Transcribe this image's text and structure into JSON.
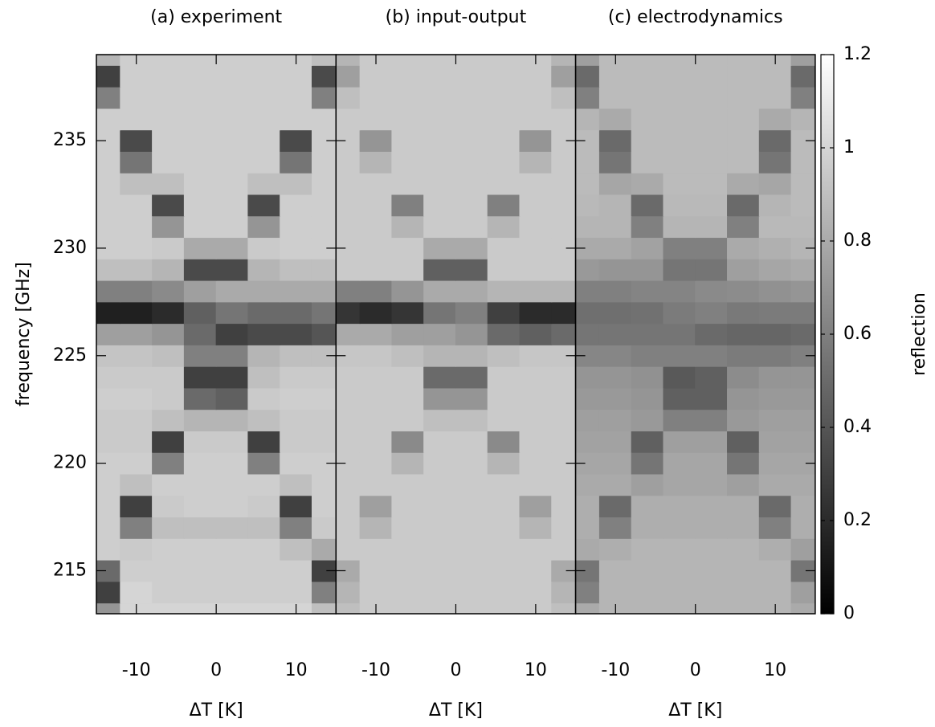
{
  "chart_data": [
    {
      "type": "heatmap",
      "title": "(a) experiment",
      "xlabel": "ΔT [K]",
      "ylabel": "frequency [GHz]",
      "x": [
        -14,
        -10,
        -6,
        -2,
        2,
        6,
        10,
        14
      ],
      "y": [
        213,
        214,
        215,
        216,
        217,
        218,
        219,
        220,
        221,
        222,
        223,
        224,
        225,
        226,
        227,
        228,
        229,
        230,
        231,
        232,
        233,
        234,
        235,
        236,
        237,
        238,
        239
      ],
      "z": [
        [
          0.7,
          1,
          1,
          1,
          1,
          1,
          1,
          0.9
        ],
        [
          0.3,
          1,
          0.97,
          0.97,
          0.97,
          0.97,
          0.97,
          0.6
        ],
        [
          0.5,
          0.97,
          0.97,
          0.97,
          0.97,
          0.97,
          0.97,
          0.3
        ],
        [
          0.97,
          0.95,
          0.97,
          0.97,
          0.97,
          0.97,
          0.9,
          0.8
        ],
        [
          0.97,
          0.6,
          0.9,
          0.9,
          0.9,
          0.9,
          0.6,
          0.95
        ],
        [
          0.97,
          0.3,
          0.95,
          0.97,
          0.97,
          0.95,
          0.3,
          0.97
        ],
        [
          0.97,
          0.9,
          0.97,
          0.97,
          0.97,
          0.97,
          0.9,
          0.97
        ],
        [
          0.97,
          0.97,
          0.6,
          0.97,
          0.97,
          0.6,
          0.97,
          0.97
        ],
        [
          0.95,
          0.95,
          0.3,
          0.95,
          0.95,
          0.3,
          0.95,
          0.95
        ],
        [
          0.95,
          0.95,
          0.9,
          0.85,
          0.85,
          0.9,
          0.95,
          0.95
        ],
        [
          0.97,
          0.97,
          0.95,
          0.5,
          0.45,
          0.95,
          0.97,
          0.97
        ],
        [
          0.95,
          0.95,
          0.95,
          0.3,
          0.3,
          0.9,
          0.95,
          0.95
        ],
        [
          0.92,
          0.92,
          0.9,
          0.6,
          0.6,
          0.85,
          0.9,
          0.9
        ],
        [
          0.75,
          0.75,
          0.7,
          0.5,
          0.3,
          0.35,
          0.35,
          0.4
        ],
        [
          0.15,
          0.15,
          0.2,
          0.45,
          0.55,
          0.5,
          0.5,
          0.55
        ],
        [
          0.6,
          0.6,
          0.65,
          0.75,
          0.8,
          0.8,
          0.8,
          0.8
        ],
        [
          0.9,
          0.9,
          0.85,
          0.35,
          0.35,
          0.85,
          0.9,
          0.9
        ],
        [
          0.97,
          0.97,
          0.95,
          0.8,
          0.8,
          0.95,
          0.97,
          0.97
        ],
        [
          0.97,
          0.97,
          0.7,
          0.97,
          0.97,
          0.7,
          0.97,
          0.97
        ],
        [
          0.97,
          0.97,
          0.35,
          0.97,
          0.97,
          0.35,
          0.97,
          0.97
        ],
        [
          0.97,
          0.9,
          0.9,
          0.97,
          0.97,
          0.9,
          0.9,
          0.97
        ],
        [
          0.97,
          0.55,
          0.97,
          0.97,
          0.97,
          0.97,
          0.55,
          0.97
        ],
        [
          0.97,
          0.35,
          0.97,
          0.97,
          0.97,
          0.97,
          0.35,
          0.97
        ],
        [
          0.97,
          0.97,
          0.97,
          0.97,
          0.97,
          0.97,
          0.97,
          0.97
        ],
        [
          0.6,
          0.97,
          0.97,
          0.97,
          0.97,
          0.97,
          0.97,
          0.6
        ],
        [
          0.3,
          0.97,
          0.97,
          0.97,
          0.97,
          0.97,
          0.97,
          0.35
        ],
        [
          0.85,
          0.97,
          0.97,
          0.97,
          0.97,
          0.97,
          0.97,
          0.9
        ]
      ],
      "xlim": [
        -15,
        15
      ],
      "ylim": [
        213,
        239
      ],
      "xticks": [
        -10,
        0,
        10
      ],
      "yticks": [
        215,
        220,
        225,
        230,
        235
      ]
    },
    {
      "type": "heatmap",
      "title": "(b) input-output",
      "xlabel": "ΔT [K]",
      "x": [
        -14,
        -10,
        -6,
        -2,
        2,
        6,
        10,
        14
      ],
      "y": [
        213,
        214,
        215,
        216,
        217,
        218,
        219,
        220,
        221,
        222,
        223,
        224,
        225,
        226,
        227,
        228,
        229,
        230,
        231,
        232,
        233,
        234,
        235,
        236,
        237,
        238,
        239
      ],
      "z": [
        [
          0.9,
          0.95,
          0.95,
          0.95,
          0.95,
          0.95,
          0.95,
          0.9
        ],
        [
          0.85,
          0.95,
          0.95,
          0.95,
          0.95,
          0.95,
          0.95,
          0.85
        ],
        [
          0.8,
          0.95,
          0.95,
          0.95,
          0.95,
          0.95,
          0.95,
          0.8
        ],
        [
          0.95,
          0.95,
          0.95,
          0.95,
          0.95,
          0.95,
          0.95,
          0.95
        ],
        [
          0.95,
          0.85,
          0.95,
          0.95,
          0.95,
          0.95,
          0.85,
          0.95
        ],
        [
          0.95,
          0.75,
          0.95,
          0.95,
          0.95,
          0.95,
          0.75,
          0.95
        ],
        [
          0.95,
          0.95,
          0.95,
          0.95,
          0.95,
          0.95,
          0.95,
          0.95
        ],
        [
          0.95,
          0.95,
          0.85,
          0.95,
          0.95,
          0.85,
          0.95,
          0.95
        ],
        [
          0.95,
          0.95,
          0.65,
          0.95,
          0.95,
          0.65,
          0.95,
          0.95
        ],
        [
          0.95,
          0.95,
          0.95,
          0.9,
          0.9,
          0.95,
          0.95,
          0.95
        ],
        [
          0.95,
          0.95,
          0.95,
          0.7,
          0.7,
          0.95,
          0.95,
          0.95
        ],
        [
          0.95,
          0.95,
          0.95,
          0.5,
          0.5,
          0.95,
          0.95,
          0.95
        ],
        [
          0.93,
          0.93,
          0.9,
          0.85,
          0.85,
          0.9,
          0.93,
          0.93
        ],
        [
          0.8,
          0.8,
          0.75,
          0.75,
          0.7,
          0.5,
          0.45,
          0.5
        ],
        [
          0.25,
          0.2,
          0.25,
          0.55,
          0.6,
          0.3,
          0.2,
          0.2
        ],
        [
          0.6,
          0.6,
          0.7,
          0.8,
          0.8,
          0.85,
          0.85,
          0.85
        ],
        [
          0.95,
          0.95,
          0.95,
          0.45,
          0.45,
          0.95,
          0.95,
          0.95
        ],
        [
          0.95,
          0.95,
          0.95,
          0.8,
          0.8,
          0.95,
          0.95,
          0.95
        ],
        [
          0.95,
          0.95,
          0.85,
          0.95,
          0.95,
          0.85,
          0.95,
          0.95
        ],
        [
          0.95,
          0.95,
          0.6,
          0.95,
          0.95,
          0.6,
          0.95,
          0.95
        ],
        [
          0.95,
          0.95,
          0.95,
          0.95,
          0.95,
          0.95,
          0.95,
          0.95
        ],
        [
          0.95,
          0.85,
          0.95,
          0.95,
          0.95,
          0.95,
          0.85,
          0.95
        ],
        [
          0.95,
          0.7,
          0.95,
          0.95,
          0.95,
          0.95,
          0.7,
          0.95
        ],
        [
          0.95,
          0.95,
          0.95,
          0.95,
          0.95,
          0.95,
          0.95,
          0.95
        ],
        [
          0.9,
          0.95,
          0.95,
          0.95,
          0.95,
          0.95,
          0.95,
          0.9
        ],
        [
          0.75,
          0.95,
          0.95,
          0.95,
          0.95,
          0.95,
          0.95,
          0.75
        ],
        [
          0.85,
          0.95,
          0.95,
          0.95,
          0.95,
          0.95,
          0.95,
          0.85
        ]
      ],
      "xlim": [
        -15,
        15
      ],
      "ylim": [
        213,
        239
      ],
      "xticks": [
        -10,
        0,
        10
      ],
      "yticks": [
        215,
        220,
        225,
        230,
        235
      ]
    },
    {
      "type": "heatmap",
      "title": "(c) electrodynamics",
      "xlabel": "ΔT [K]",
      "x": [
        -14,
        -10,
        -6,
        -2,
        2,
        6,
        10,
        14
      ],
      "y": [
        213,
        214,
        215,
        216,
        217,
        218,
        219,
        220,
        221,
        222,
        223,
        224,
        225,
        226,
        227,
        228,
        229,
        230,
        231,
        232,
        233,
        234,
        235,
        236,
        237,
        238,
        239
      ],
      "z": [
        [
          0.8,
          0.85,
          0.85,
          0.85,
          0.85,
          0.85,
          0.85,
          0.8
        ],
        [
          0.6,
          0.85,
          0.85,
          0.85,
          0.85,
          0.85,
          0.85,
          0.75
        ],
        [
          0.55,
          0.85,
          0.85,
          0.85,
          0.85,
          0.85,
          0.85,
          0.55
        ],
        [
          0.8,
          0.82,
          0.85,
          0.85,
          0.85,
          0.85,
          0.82,
          0.75
        ],
        [
          0.82,
          0.6,
          0.82,
          0.82,
          0.82,
          0.82,
          0.6,
          0.82
        ],
        [
          0.82,
          0.5,
          0.82,
          0.82,
          0.82,
          0.82,
          0.5,
          0.82
        ],
        [
          0.8,
          0.8,
          0.75,
          0.78,
          0.78,
          0.75,
          0.8,
          0.8
        ],
        [
          0.78,
          0.78,
          0.55,
          0.78,
          0.78,
          0.55,
          0.78,
          0.78
        ],
        [
          0.76,
          0.76,
          0.45,
          0.75,
          0.75,
          0.45,
          0.76,
          0.76
        ],
        [
          0.75,
          0.75,
          0.72,
          0.6,
          0.6,
          0.72,
          0.75,
          0.75
        ],
        [
          0.72,
          0.72,
          0.7,
          0.45,
          0.45,
          0.7,
          0.72,
          0.72
        ],
        [
          0.7,
          0.7,
          0.68,
          0.42,
          0.45,
          0.66,
          0.7,
          0.7
        ],
        [
          0.63,
          0.63,
          0.6,
          0.6,
          0.6,
          0.58,
          0.58,
          0.6
        ],
        [
          0.55,
          0.55,
          0.55,
          0.55,
          0.5,
          0.48,
          0.48,
          0.5
        ],
        [
          0.52,
          0.52,
          0.53,
          0.58,
          0.6,
          0.57,
          0.58,
          0.58
        ],
        [
          0.6,
          0.6,
          0.62,
          0.62,
          0.65,
          0.66,
          0.68,
          0.7
        ],
        [
          0.72,
          0.7,
          0.7,
          0.55,
          0.55,
          0.75,
          0.78,
          0.8
        ],
        [
          0.8,
          0.8,
          0.76,
          0.6,
          0.6,
          0.8,
          0.83,
          0.85
        ],
        [
          0.85,
          0.85,
          0.6,
          0.85,
          0.85,
          0.6,
          0.87,
          0.87
        ],
        [
          0.87,
          0.85,
          0.5,
          0.87,
          0.87,
          0.5,
          0.85,
          0.88
        ],
        [
          0.88,
          0.78,
          0.8,
          0.88,
          0.88,
          0.8,
          0.78,
          0.88
        ],
        [
          0.88,
          0.55,
          0.88,
          0.88,
          0.88,
          0.88,
          0.55,
          0.88
        ],
        [
          0.88,
          0.5,
          0.88,
          0.88,
          0.88,
          0.88,
          0.5,
          0.88
        ],
        [
          0.85,
          0.8,
          0.88,
          0.88,
          0.88,
          0.88,
          0.8,
          0.85
        ],
        [
          0.6,
          0.88,
          0.88,
          0.88,
          0.88,
          0.88,
          0.88,
          0.6
        ],
        [
          0.5,
          0.88,
          0.88,
          0.88,
          0.88,
          0.88,
          0.88,
          0.5
        ],
        [
          0.75,
          0.88,
          0.88,
          0.88,
          0.88,
          0.88,
          0.88,
          0.75
        ]
      ],
      "xlim": [
        -15,
        15
      ],
      "ylim": [
        213,
        239
      ],
      "xticks": [
        -10,
        0,
        10
      ],
      "yticks": [
        215,
        220,
        225,
        230,
        235
      ],
      "colorbar": {
        "label": "reflection",
        "lim": [
          0,
          1.2
        ],
        "ticks": [
          0,
          0.2,
          0.4,
          0.6,
          0.8,
          1,
          1.2
        ]
      }
    }
  ]
}
